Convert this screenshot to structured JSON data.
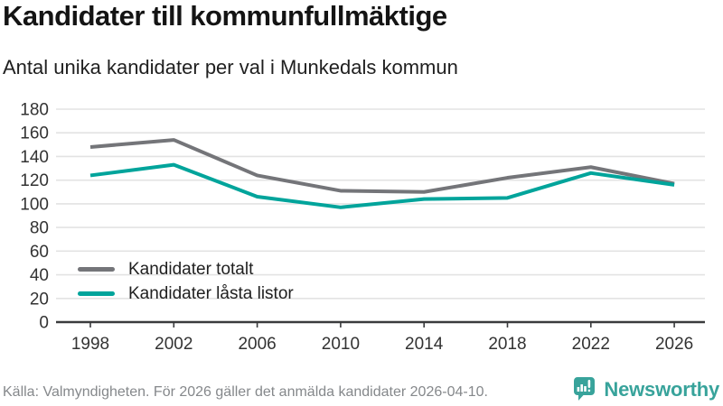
{
  "chart_data": {
    "type": "line",
    "title": "Kandidater till kommunfullmäktige",
    "subtitle": "Antal unika kandidater per val i Munkedals kommun",
    "x": [
      1998,
      2002,
      2006,
      2010,
      2014,
      2018,
      2022,
      2026
    ],
    "series": [
      {
        "name": "Kandidater totalt",
        "color": "#747579",
        "values": [
          148,
          154,
          124,
          111,
          110,
          122,
          131,
          117
        ]
      },
      {
        "name": "Kandidater låsta listor",
        "color": "#00a49b",
        "values": [
          124,
          133,
          106,
          97,
          104,
          105,
          126,
          116
        ]
      }
    ],
    "xlabel": "",
    "ylabel": "",
    "ylim": [
      0,
      180
    ],
    "ytick_step": 20,
    "grid": true,
    "legend_position": "inside-bottom-left"
  },
  "footer": {
    "source": "Källa: Valmyndigheten. För 2026 gäller det anmälda kandidater 2026-04-10.",
    "brand": "Newsworthy"
  },
  "colors": {
    "brand_teal": "#38a39b",
    "axis": "#3a3b3d",
    "grid": "#e3e3e3",
    "tick_text": "#333333",
    "muted_text": "#85888b"
  }
}
